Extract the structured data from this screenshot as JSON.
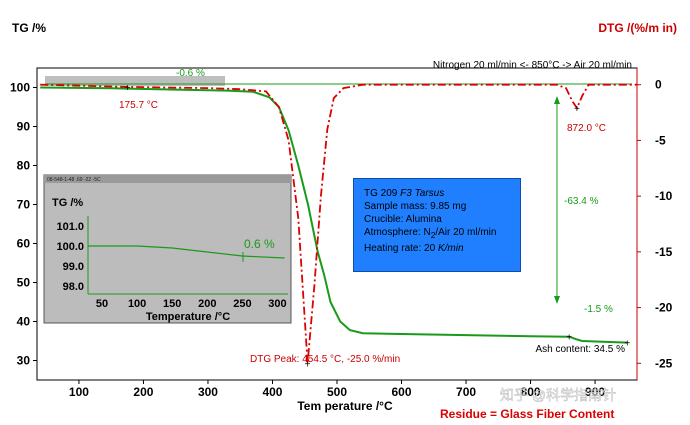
{
  "chart_data": {
    "type": "line",
    "xlabel": "Tem perature /°C",
    "ylabel_left": "TG /%",
    "ylabel_right": "DTG /(%/m in)",
    "x_ticks": [
      100,
      200,
      300,
      400,
      500,
      600,
      700,
      800,
      900
    ],
    "x_tick_labels": [
      "100",
      "200",
      "300",
      "400",
      "500",
      "600",
      "700",
      "800",
      "900"
    ],
    "xlim": [
      35,
      965
    ],
    "y_left_ticks": [
      30,
      40,
      50,
      60,
      70,
      80,
      90,
      100
    ],
    "y_left_lim": [
      25,
      105
    ],
    "y_right_ticks": [
      0,
      -5,
      -10,
      -15,
      -20,
      -25
    ],
    "y_right_lim": [
      -26.5,
      1.5
    ],
    "series": [
      {
        "axis": "left",
        "color": "#1a9a1a",
        "points": [
          [
            40,
            100
          ],
          [
            150,
            99.8
          ],
          [
            260,
            99.4
          ],
          [
            330,
            99.2
          ],
          [
            370,
            98.9
          ],
          [
            395,
            97.5
          ],
          [
            410,
            95
          ],
          [
            425,
            89
          ],
          [
            440,
            80
          ],
          [
            455,
            70
          ],
          [
            470,
            58
          ],
          [
            480,
            52
          ],
          [
            490,
            45
          ],
          [
            505,
            40
          ],
          [
            520,
            37.8
          ],
          [
            540,
            37
          ],
          [
            600,
            36.8
          ],
          [
            700,
            36.5
          ],
          [
            800,
            36.2
          ],
          [
            860,
            36.1
          ],
          [
            870,
            35.5
          ],
          [
            880,
            35
          ],
          [
            950,
            34.6
          ]
        ]
      },
      {
        "axis": "right",
        "color": "#dd0000",
        "points": [
          [
            40,
            0
          ],
          [
            175,
            -0.2
          ],
          [
            300,
            -0.3
          ],
          [
            350,
            -0.4
          ],
          [
            390,
            -0.6
          ],
          [
            410,
            -2
          ],
          [
            425,
            -5
          ],
          [
            440,
            -12
          ],
          [
            454.5,
            -25
          ],
          [
            465,
            -18
          ],
          [
            475,
            -10
          ],
          [
            485,
            -4
          ],
          [
            495,
            -1.2
          ],
          [
            510,
            -0.3
          ],
          [
            540,
            0
          ],
          [
            700,
            0
          ],
          [
            840,
            0
          ],
          [
            855,
            -0.3
          ],
          [
            865,
            -1.5
          ],
          [
            872,
            -2.1
          ],
          [
            880,
            -1
          ],
          [
            890,
            0
          ],
          [
            965,
            0
          ]
        ]
      }
    ],
    "annotations": {
      "atmosphere": "Nitrogen 20 ml/min <- 850°C -> Air 20 ml/min",
      "mass_change_1": "-0.6 %",
      "mass_change_2": "-63.4 %",
      "mass_change_3": "-1.5 %",
      "peak_1": "175.7 °C",
      "peak_2": "872.0 °C",
      "dtg_peak": "DTG Peak: 454.5 °C, -25.0 %/min",
      "ash": "Ash content: 34.5 %",
      "residue": "Residue = Glass Fiber Content",
      "watermark": "知乎 @科学指南针"
    },
    "info_box": {
      "model": "TG 209 ",
      "model_italic": "F3 Tarsus",
      "mass": "Sample mass: 9.85 mg",
      "crucible": "Crucible: Alumina",
      "atm_a": "Atmosphere: N",
      "atm_sub": "2",
      "atm_b": "/Air 20 ml/min",
      "rate_a": "Heating rate: 20 ",
      "rate_italic": "K/min"
    },
    "inset": {
      "header": "08-548-1-48 .69 -22 -5C",
      "ylabel": "TG /%",
      "xlabel": "Temperature /°C",
      "y_ticks": [
        98,
        99,
        100,
        101
      ],
      "y_tick_labels": [
        "98.0",
        "99.0",
        "100.0",
        "101.0"
      ],
      "x_ticks": [
        50,
        100,
        150,
        200,
        250,
        300
      ],
      "x_tick_labels": [
        "50",
        "100",
        "150",
        "200",
        "250",
        "300"
      ],
      "xlim": [
        30,
        315
      ],
      "ylim": [
        97.6,
        101.2
      ],
      "points": [
        [
          30,
          100
        ],
        [
          100,
          100
        ],
        [
          150,
          99.9
        ],
        [
          200,
          99.7
        ],
        [
          250,
          99.5
        ],
        [
          310,
          99.4
        ]
      ],
      "change": "0.6 %"
    }
  }
}
